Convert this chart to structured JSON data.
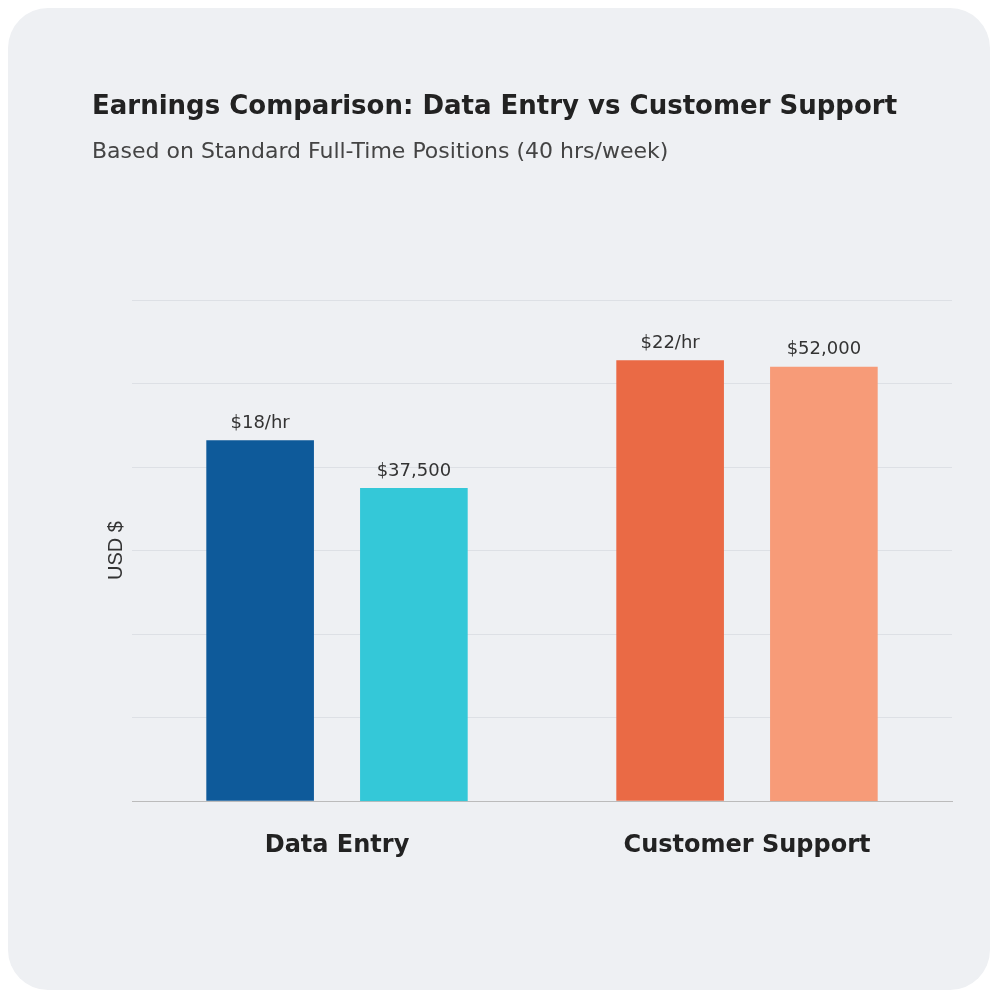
{
  "chart_data": {
    "type": "bar",
    "title": "Earnings Comparison: Data Entry vs Customer Support",
    "subtitle": "Based on Standard Full-Time Positions (40 hrs/week)",
    "ylabel": "USD $",
    "tick_labels": "x",
    "categories": [
      "Data Entry",
      "Customer Support"
    ],
    "series": [
      {
        "colors": [
          "#0e5a9a",
          "#ea6a45"
        ],
        "values": [
          18,
          22
        ],
        "value_labels": [
          "$18/hr",
          "$22/hr"
        ]
      },
      {
        "axis": "y2",
        "colors": [
          "#34c8d8",
          "#f79b78"
        ],
        "values": [
          37500,
          52000
        ],
        "value_labels": [
          "$37,500",
          "$52,000"
        ]
      }
    ],
    "grid": "y",
    "legend": false
  }
}
